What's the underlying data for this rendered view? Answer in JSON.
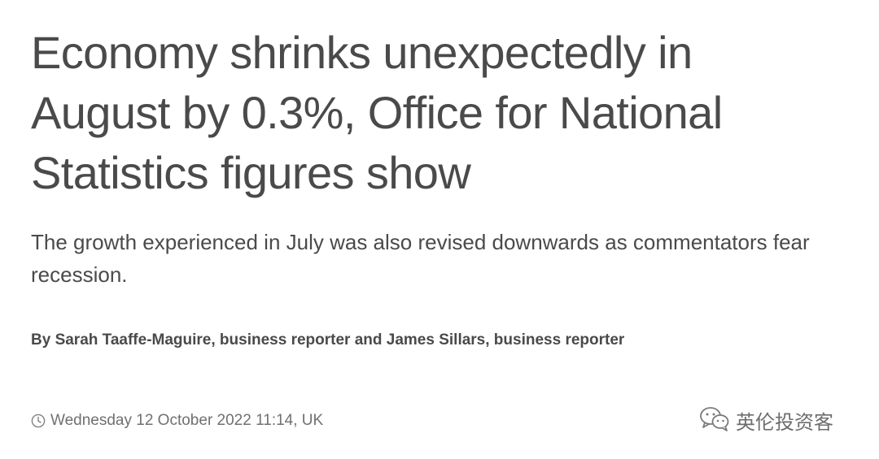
{
  "article": {
    "headline": "Economy shrinks unexpectedly in August by 0.3%, Office for National Statistics figures show",
    "standfirst": "The growth experienced in July was also revised downwards as commentators fear recession.",
    "byline": "By Sarah Taaffe-Maguire, business reporter and James Sillars, business reporter",
    "timestamp": "Wednesday 12 October 2022 11:14, UK",
    "timestamp_icon": "clock-icon"
  },
  "watermark": {
    "icon": "wechat-icon",
    "text": "英伦投资客"
  },
  "colors": {
    "text": "#4a4a4a",
    "muted": "#707070",
    "background": "#ffffff"
  }
}
